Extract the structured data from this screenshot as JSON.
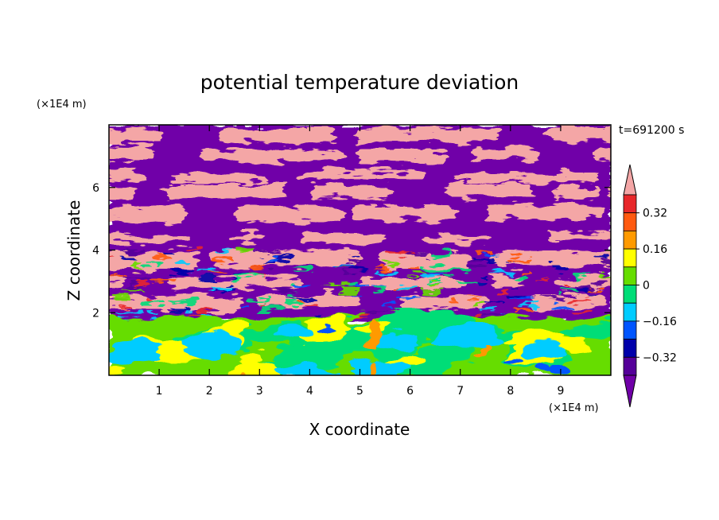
{
  "chart_data": {
    "type": "heatmap",
    "title": "potential temperature deviation",
    "time_label": "t=691200 s",
    "xlabel": "X coordinate",
    "ylabel": "Z coordinate",
    "x_unit": "(×1E4 m)",
    "y_unit": "(×1E4 m)",
    "xlim": [
      0,
      10
    ],
    "ylim": [
      0,
      8
    ],
    "x_ticks": [
      1,
      2,
      3,
      4,
      5,
      6,
      7,
      8,
      9
    ],
    "y_ticks": [
      2,
      4,
      6
    ],
    "x_tick_labels": [
      "1",
      "2",
      "3",
      "4",
      "5",
      "6",
      "7",
      "8",
      "9"
    ],
    "y_tick_labels": [
      "2",
      "4",
      "6"
    ],
    "colorbar": {
      "levels": [
        -0.4,
        -0.32,
        -0.24,
        -0.16,
        -0.08,
        0,
        0.08,
        0.16,
        0.24,
        0.32,
        0.4
      ],
      "tick_values": [
        0.32,
        0.16,
        0,
        -0.16,
        -0.32
      ],
      "tick_labels": [
        "0.32",
        "0.16",
        "0",
        "−0.16",
        "−0.32"
      ],
      "colors_high_to_low": [
        "#f4a6a6",
        "#e8272a",
        "#ff5a10",
        "#ff9a00",
        "#ffff00",
        "#66dd00",
        "#00dd77",
        "#00ccff",
        "#0055ff",
        "#0000aa",
        "#550099",
        "#7000a8"
      ]
    }
  }
}
